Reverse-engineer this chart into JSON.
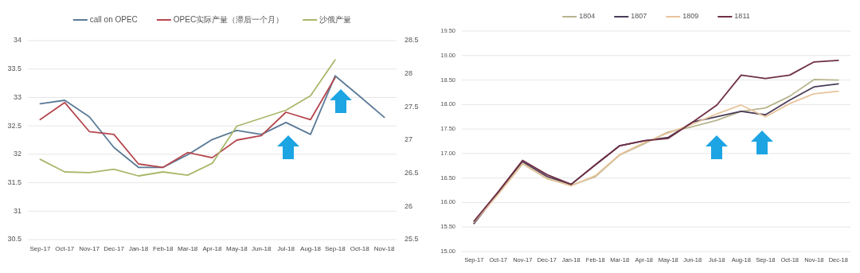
{
  "chart_data": [
    {
      "type": "line",
      "categories": [
        "Sep-17",
        "Oct-17",
        "Nov-17",
        "Dec-17",
        "Jan-18",
        "Feb-18",
        "Mar-18",
        "Apr-18",
        "May-18",
        "Jun-18",
        "Jul-18",
        "Aug-18",
        "Sep-18",
        "Oct-18",
        "Nov-18"
      ],
      "series": [
        {
          "name": "call on OPEC",
          "color": "#5b7a96",
          "values": [
            32.89,
            32.95,
            32.66,
            32.12,
            31.77,
            31.77,
            31.99,
            32.26,
            32.42,
            32.35,
            32.56,
            32.35,
            33.38,
            33.02,
            32.65
          ]
        },
        {
          "name": "OPEC实际产量（滞后一个月）",
          "color": "#b5474e",
          "values": [
            32.61,
            32.91,
            32.4,
            32.35,
            31.83,
            31.77,
            32.03,
            31.94,
            32.25,
            32.33,
            32.74,
            32.61,
            33.35,
            null,
            null
          ]
        },
        {
          "name": "沙俄产量",
          "color": "#a9b86a",
          "axis": "y2",
          "values": [
            26.71,
            26.52,
            26.51,
            26.56,
            26.46,
            26.52,
            26.47,
            26.65,
            27.21,
            27.33,
            27.45,
            27.67,
            28.21,
            null,
            null
          ]
        }
      ],
      "ylim": [
        30.5,
        34
      ],
      "yticks": [
        30.5,
        31,
        31.5,
        32,
        32.5,
        33,
        33.5,
        34
      ],
      "y2lim": [
        25.5,
        28.5
      ],
      "y2ticks": [
        25.5,
        26,
        26.5,
        27,
        27.5,
        28,
        28.5
      ],
      "grid": "y",
      "legend": "top"
    },
    {
      "type": "line",
      "categories": [
        "Sep-17",
        "Oct-17",
        "Nov-17",
        "Dec-17",
        "Jan-18",
        "Feb-18",
        "Mar-18",
        "Apr-18",
        "May-18",
        "Jun-18",
        "Jul-18",
        "Aug-18",
        "Sep-18",
        "Oct-18",
        "Nov-18",
        "Dec-18"
      ],
      "series": [
        {
          "name": "1804",
          "color": "#b8b58e",
          "values": [
            15.6,
            16.18,
            16.79,
            16.49,
            16.35,
            16.53,
            16.97,
            17.2,
            17.44,
            17.55,
            17.68,
            17.86,
            17.93,
            18.17,
            18.51,
            18.5
          ]
        },
        {
          "name": "1807",
          "color": "#4a3d58",
          "values": [
            15.57,
            16.2,
            16.83,
            16.53,
            16.37,
            16.77,
            17.16,
            17.26,
            17.33,
            17.64,
            17.75,
            17.86,
            17.79,
            18.09,
            18.36,
            18.42
          ]
        },
        {
          "name": "1809",
          "color": "#e8c49c",
          "values": [
            15.6,
            16.17,
            16.8,
            16.5,
            16.34,
            16.55,
            16.98,
            17.22,
            17.42,
            17.6,
            17.81,
            17.99,
            17.75,
            18.02,
            18.22,
            18.27
          ]
        },
        {
          "name": "1811",
          "color": "#6e2f45",
          "values": [
            15.62,
            16.22,
            16.86,
            16.57,
            16.37,
            16.77,
            17.16,
            17.26,
            17.31,
            17.64,
            17.99,
            18.6,
            18.53,
            18.6,
            18.87,
            18.9
          ]
        }
      ],
      "ylim": [
        15,
        19.5
      ],
      "yticks": [
        {
          "value": 15,
          "label": "15.00"
        },
        {
          "value": 15.5,
          "label": "15.50"
        },
        {
          "value": 16,
          "label": "16.00"
        },
        {
          "value": 16.5,
          "label": "16.50"
        },
        {
          "value": 17,
          "label": "17.00"
        },
        {
          "value": 17.5,
          "label": "17.50"
        },
        {
          "value": 18,
          "label": "18.00"
        },
        {
          "value": 18.5,
          "label": "18.50"
        },
        {
          "value": 19,
          "label": "19.00"
        },
        {
          "value": 19.5,
          "label": "19.50"
        }
      ],
      "grid": "y",
      "legend": "top"
    }
  ]
}
